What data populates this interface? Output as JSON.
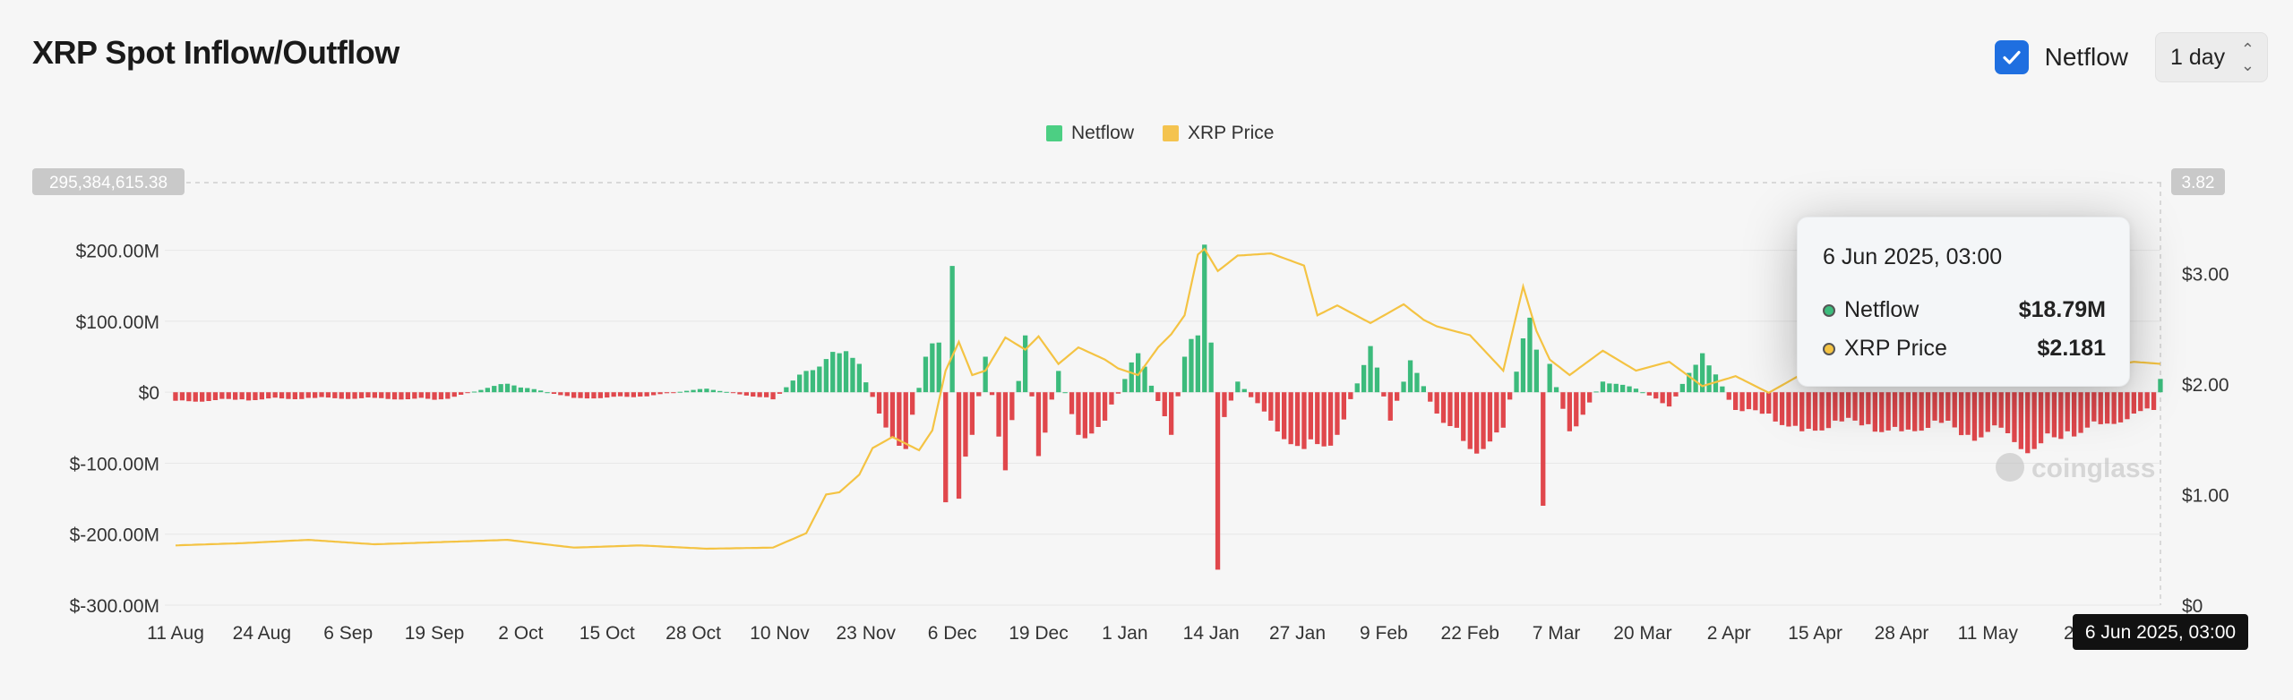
{
  "header": {
    "title": "XRP Spot Inflow/Outflow",
    "netflow_toggle_label": "Netflow",
    "interval_value": "1 day"
  },
  "colors": {
    "positive": "#3cbb7c",
    "negative": "#e0474c",
    "price": "#f4c343",
    "legend_netflow": "#4ccf83",
    "legend_price": "#f4c34f"
  },
  "tooltip": {
    "date": "6 Jun 2025, 03:00",
    "netflow_label": "Netflow",
    "netflow_value": "$18.79M",
    "price_label": "XRP Price",
    "price_value": "$2.181"
  },
  "chart_data": {
    "type": "bar",
    "legend": [
      "Netflow",
      "XRP Price"
    ],
    "left_axis": {
      "ticks": [
        "$200.00M",
        "$100.00M",
        "$0",
        "$-100.00M",
        "$-200.00M",
        "$-300.00M"
      ],
      "tick_values": [
        200,
        100,
        0,
        -100,
        -200,
        -300
      ],
      "range": [
        -300,
        295.38
      ],
      "unit": "M USD",
      "max_badge": "295,384,615.38"
    },
    "right_axis": {
      "ticks": [
        "$3.00",
        "$2.00",
        "$1.00",
        "$0"
      ],
      "tick_values": [
        3,
        2,
        1,
        0
      ],
      "range": [
        0,
        3.82
      ],
      "max_badge": "3.82"
    },
    "x_ticks": [
      "11 Aug",
      "24 Aug",
      "6 Sep",
      "19 Sep",
      "2 Oct",
      "15 Oct",
      "28 Oct",
      "10 Nov",
      "23 Nov",
      "6 Dec",
      "19 Dec",
      "1 Jan",
      "14 Jan",
      "27 Jan",
      "9 Feb",
      "22 Feb",
      "7 Mar",
      "20 Mar",
      "2 Apr",
      "15 Apr",
      "28 Apr",
      "11 May",
      "24"
    ],
    "x_tick_days": [
      0,
      13,
      26,
      39,
      52,
      65,
      78,
      91,
      104,
      117,
      130,
      143,
      156,
      169,
      182,
      195,
      208,
      221,
      234,
      247,
      260,
      273,
      286
    ],
    "crosshair_label": "6 Jun 2025, 03:00",
    "crosshair_day": 299,
    "netflow_keyframes": {
      "days": [
        0,
        10,
        20,
        30,
        40,
        50,
        60,
        70,
        80,
        90,
        95,
        100,
        103,
        106,
        110,
        113,
        115,
        116,
        117,
        118,
        120,
        122,
        125,
        128,
        130,
        133,
        136,
        140,
        145,
        150,
        152,
        154,
        155,
        156,
        157,
        158,
        160,
        165,
        170,
        175,
        180,
        183,
        186,
        190,
        195,
        200,
        204,
        205,
        206,
        207,
        210,
        215,
        220,
        225,
        230,
        235,
        240,
        245,
        250,
        255,
        260,
        265,
        270,
        275,
        280,
        285,
        290,
        295,
        298,
        299
      ],
      "values": [
        -12,
        -10,
        -8,
        -8,
        -10,
        12,
        -8,
        -6,
        5,
        -10,
        30,
        55,
        40,
        -30,
        -80,
        50,
        70,
        -155,
        178,
        -150,
        -60,
        50,
        -110,
        80,
        -90,
        30,
        -60,
        -40,
        55,
        -60,
        50,
        80,
        208,
        70,
        -250,
        -35,
        15,
        -40,
        -80,
        -60,
        65,
        -40,
        45,
        -30,
        -80,
        -50,
        105,
        60,
        -160,
        40,
        -55,
        15,
        5,
        -20,
        55,
        -25,
        -30,
        -55,
        -40,
        -45,
        -55,
        -40,
        -60,
        -50,
        -80,
        -55,
        -45,
        -30,
        -25,
        18.79
      ]
    },
    "xrp_price_keyframes": {
      "days": [
        0,
        10,
        20,
        30,
        40,
        50,
        60,
        70,
        80,
        90,
        95,
        98,
        100,
        103,
        105,
        108,
        112,
        114,
        116,
        118,
        120,
        122,
        125,
        128,
        130,
        133,
        136,
        140,
        142,
        145,
        148,
        150,
        152,
        154,
        155,
        157,
        160,
        165,
        170,
        172,
        175,
        180,
        185,
        188,
        190,
        195,
        200,
        203,
        205,
        207,
        210,
        215,
        220,
        225,
        230,
        235,
        240,
        245,
        250,
        255,
        260,
        265,
        270,
        275,
        280,
        285,
        290,
        295,
        299
      ],
      "values": [
        0.54,
        0.56,
        0.59,
        0.55,
        0.57,
        0.59,
        0.52,
        0.54,
        0.51,
        0.52,
        0.65,
        1.0,
        1.02,
        1.18,
        1.42,
        1.52,
        1.4,
        1.58,
        2.12,
        2.38,
        2.08,
        2.12,
        2.42,
        2.31,
        2.43,
        2.18,
        2.33,
        2.22,
        2.14,
        2.08,
        2.33,
        2.45,
        2.62,
        3.17,
        3.22,
        3.02,
        3.16,
        3.18,
        3.07,
        2.62,
        2.71,
        2.55,
        2.72,
        2.58,
        2.52,
        2.44,
        2.12,
        2.88,
        2.48,
        2.22,
        2.08,
        2.3,
        2.12,
        2.2,
        1.98,
        2.07,
        1.92,
        2.09,
        2.17,
        2.3,
        2.16,
        2.25,
        2.34,
        2.41,
        2.2,
        2.36,
        2.15,
        2.2,
        2.181
      ]
    }
  }
}
